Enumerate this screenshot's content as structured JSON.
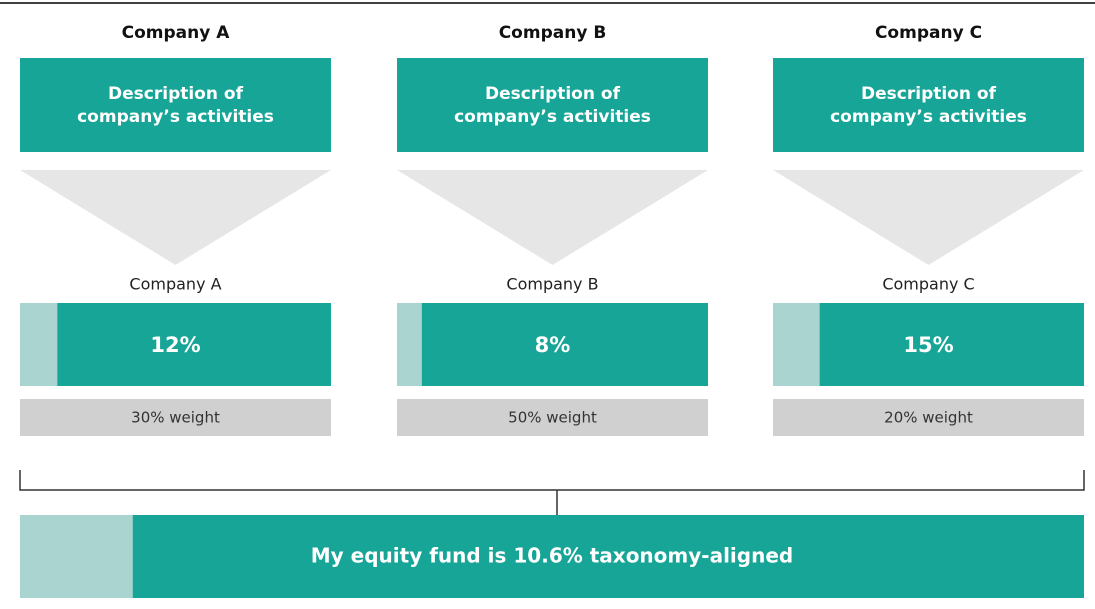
{
  "companies": [
    {
      "name": "Company A",
      "description": "Description of company’s activities",
      "label": "Company A",
      "share": {
        "value": 12,
        "label": "12%"
      },
      "weight": "30% weight"
    },
    {
      "name": "Company B",
      "description": "Description of company’s activities",
      "label": "Company B",
      "share": {
        "value": 8,
        "label": "8%"
      },
      "weight": "50% weight"
    },
    {
      "name": "Company C",
      "description": "Description of company’s activities",
      "label": "Company C",
      "share": {
        "value": 15,
        "label": "15%"
      },
      "weight": "20% weight"
    }
  ],
  "fund": {
    "value": 10.6,
    "text": "My equity fund is 10.6% taxonomy-aligned"
  }
}
